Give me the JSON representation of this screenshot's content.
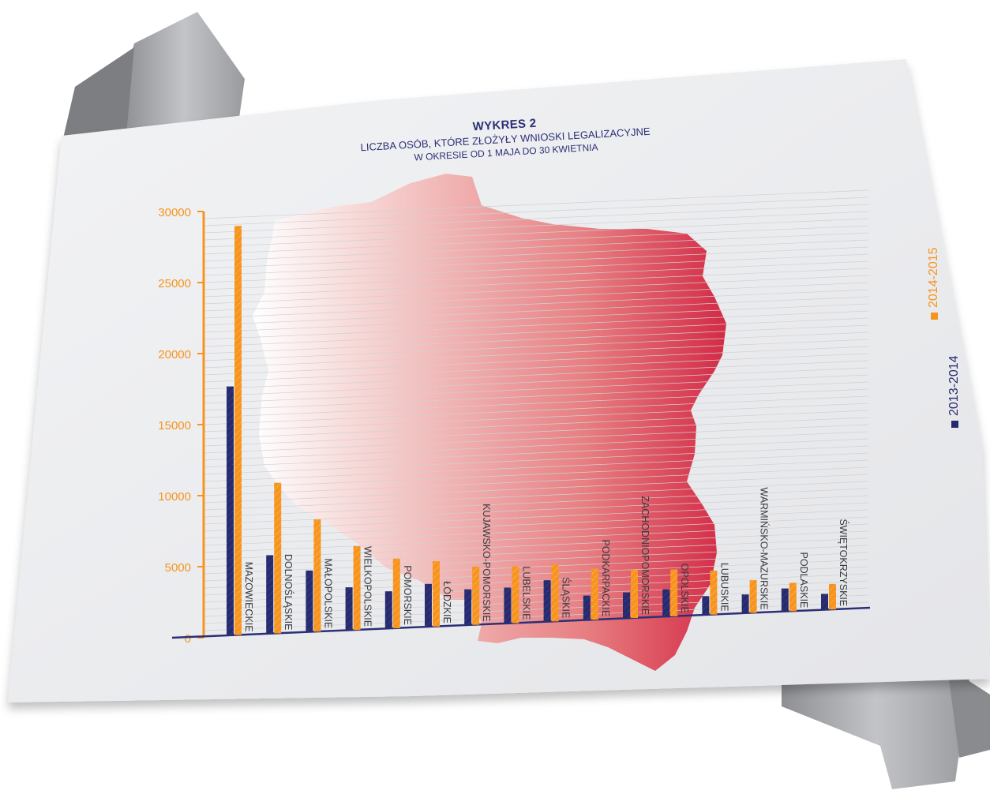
{
  "chart_data": {
    "type": "bar",
    "title": "WYKRES 2",
    "subtitle_line1": "LICZBA OSÓB, KTÓRE ZŁOŻYŁY WNIOSKI LEGALIZACYJNE",
    "subtitle_line2": "W OKRESIE OD 1 MAJA DO 30 KWIETNIA",
    "categories": [
      "MAZOWIECKIE",
      "DOLNOŚLĄSKIE",
      "MAŁOPOLSKIE",
      "WIELKOPOLSKIE",
      "POMORSKIE",
      "ŁÓDZKIE",
      "KUJAWSKO-POMORSKIE",
      "LUBELSKIE",
      "ŚLĄSKIE",
      "PODKARPACKIE",
      "ZACHODNIOPOMORSKIE",
      "OPOLSKIE",
      "LUBUSKIE",
      "WARMIŃSKO-MAZURSKIE",
      "PODLASKIE",
      "ŚWIĘTOKRZYSKIE"
    ],
    "series": [
      {
        "name": "2013-2014",
        "color": "#262a6e",
        "values": [
          17500,
          5500,
          4300,
          3000,
          2600,
          3000,
          2500,
          2500,
          2900,
          1700,
          1800,
          1900,
          1300,
          1300,
          1600,
          1100
        ]
      },
      {
        "name": "2014-2015",
        "color": "#f7941d",
        "values": [
          28800,
          10600,
          7900,
          5900,
          4900,
          4600,
          4100,
          4000,
          4000,
          3600,
          3400,
          3300,
          3100,
          2300,
          2000,
          1800
        ]
      }
    ],
    "yticks": [
      "0",
      "5000",
      "10000",
      "15000",
      "20000",
      "25000",
      "30000"
    ],
    "ylim": [
      0,
      30000
    ],
    "grid": true,
    "legend_position": "right"
  }
}
